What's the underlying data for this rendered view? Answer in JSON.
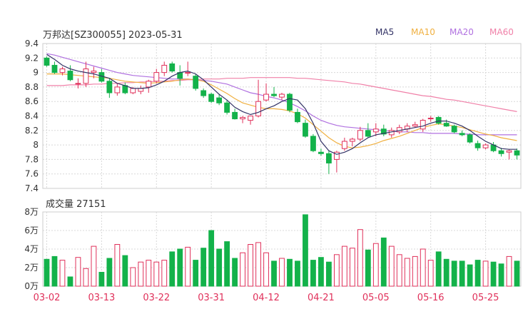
{
  "chart_data": {
    "type": "candlestick",
    "title": "万邦达[SZ300055] 2023-05-31",
    "price_axis": {
      "min": 7.4,
      "max": 9.4,
      "ticks": [
        "9.4",
        "9.2",
        "9",
        "8.8",
        "8.6",
        "8.4",
        "8.2",
        "8",
        "7.8",
        "7.6",
        "7.4"
      ]
    },
    "legend": [
      {
        "label": "MA5",
        "color": "#333366"
      },
      {
        "label": "MA10",
        "color": "#f0b040"
      },
      {
        "label": "MA20",
        "color": "#b070e0"
      },
      {
        "label": "MA60",
        "color": "#f080a8"
      }
    ],
    "dates": [
      "03-02",
      "03-03",
      "03-06",
      "03-07",
      "03-08",
      "03-09",
      "03-10",
      "03-13",
      "03-14",
      "03-15",
      "03-16",
      "03-17",
      "03-20",
      "03-21",
      "03-22",
      "03-23",
      "03-24",
      "03-27",
      "03-28",
      "03-29",
      "03-30",
      "03-31",
      "04-03",
      "04-04",
      "04-06",
      "04-07",
      "04-10",
      "04-11",
      "04-12",
      "04-13",
      "04-14",
      "04-17",
      "04-18",
      "04-19",
      "04-20",
      "04-21",
      "04-24",
      "04-25",
      "04-26",
      "04-27",
      "04-28",
      "05-04",
      "05-05",
      "05-08",
      "05-09",
      "05-10",
      "05-11",
      "05-12",
      "05-15",
      "05-16",
      "05-17",
      "05-18",
      "05-19",
      "05-22",
      "05-23",
      "05-24",
      "05-25",
      "05-26",
      "05-29",
      "05-30",
      "05-31"
    ],
    "x_ticks": [
      "03-02",
      "03-13",
      "03-22",
      "03-31",
      "04-12",
      "04-21",
      "05-05",
      "05-16",
      "05-25"
    ],
    "x_tick_indices": [
      0,
      7,
      14,
      21,
      28,
      35,
      42,
      49,
      56
    ],
    "ohlc": [
      [
        9.2,
        9.22,
        9.08,
        9.1
      ],
      [
        9.1,
        9.15,
        8.98,
        9.0
      ],
      [
        9.0,
        9.08,
        8.96,
        9.05
      ],
      [
        9.02,
        9.1,
        8.88,
        8.9
      ],
      [
        8.85,
        8.92,
        8.78,
        8.85
      ],
      [
        8.85,
        9.15,
        8.8,
        9.05
      ],
      [
        9.0,
        9.08,
        8.92,
        9.02
      ],
      [
        9.0,
        9.05,
        8.86,
        8.88
      ],
      [
        8.88,
        8.92,
        8.65,
        8.72
      ],
      [
        8.72,
        8.85,
        8.68,
        8.8
      ],
      [
        8.82,
        8.86,
        8.7,
        8.72
      ],
      [
        8.72,
        8.8,
        8.7,
        8.78
      ],
      [
        8.74,
        8.82,
        8.7,
        8.78
      ],
      [
        8.8,
        8.9,
        8.72,
        8.88
      ],
      [
        8.88,
        9.05,
        8.85,
        9.0
      ],
      [
        9.0,
        9.15,
        8.95,
        9.1
      ],
      [
        9.12,
        9.15,
        9.0,
        9.02
      ],
      [
        9.0,
        9.1,
        8.82,
        8.92
      ],
      [
        9.0,
        9.15,
        8.95,
        9.0
      ],
      [
        8.95,
        8.98,
        8.75,
        8.78
      ],
      [
        8.75,
        8.78,
        8.65,
        8.68
      ],
      [
        8.7,
        8.72,
        8.58,
        8.6
      ],
      [
        8.65,
        8.7,
        8.55,
        8.58
      ],
      [
        8.58,
        8.62,
        8.42,
        8.45
      ],
      [
        8.45,
        8.5,
        8.35,
        8.36
      ],
      [
        8.36,
        8.4,
        8.3,
        8.38
      ],
      [
        8.34,
        8.4,
        8.28,
        8.4
      ],
      [
        8.4,
        8.9,
        8.38,
        8.6
      ],
      [
        8.62,
        8.85,
        8.6,
        8.7
      ],
      [
        8.7,
        8.8,
        8.66,
        8.68
      ],
      [
        8.66,
        8.72,
        8.62,
        8.7
      ],
      [
        8.7,
        8.72,
        8.45,
        8.48
      ],
      [
        8.45,
        8.5,
        8.3,
        8.32
      ],
      [
        8.3,
        8.35,
        8.1,
        8.12
      ],
      [
        8.12,
        8.15,
        7.9,
        7.92
      ],
      [
        7.9,
        7.95,
        7.85,
        7.88
      ],
      [
        7.88,
        7.92,
        7.6,
        7.75
      ],
      [
        7.8,
        7.92,
        7.62,
        7.9
      ],
      [
        7.95,
        8.1,
        7.92,
        8.05
      ],
      [
        8.05,
        8.1,
        7.98,
        8.08
      ],
      [
        8.08,
        8.25,
        8.05,
        8.2
      ],
      [
        8.2,
        8.3,
        8.1,
        8.12
      ],
      [
        8.18,
        8.3,
        8.12,
        8.22
      ],
      [
        8.22,
        8.28,
        8.12,
        8.15
      ],
      [
        8.14,
        8.24,
        8.1,
        8.2
      ],
      [
        8.18,
        8.28,
        8.15,
        8.24
      ],
      [
        8.22,
        8.3,
        8.18,
        8.26
      ],
      [
        8.26,
        8.32,
        8.24,
        8.28
      ],
      [
        8.22,
        8.36,
        8.18,
        8.34
      ],
      [
        8.36,
        8.4,
        8.32,
        8.37
      ],
      [
        8.38,
        8.4,
        8.28,
        8.3
      ],
      [
        8.3,
        8.35,
        8.25,
        8.26
      ],
      [
        8.26,
        8.28,
        8.16,
        8.18
      ],
      [
        8.16,
        8.2,
        8.12,
        8.14
      ],
      [
        8.14,
        8.16,
        8.02,
        8.04
      ],
      [
        8.02,
        8.06,
        7.92,
        7.96
      ],
      [
        7.96,
        8.02,
        7.94,
        8.0
      ],
      [
        8.0,
        8.04,
        7.9,
        7.92
      ],
      [
        7.92,
        7.96,
        7.84,
        7.88
      ],
      [
        7.9,
        7.94,
        7.8,
        7.92
      ],
      [
        7.92,
        7.95,
        7.8,
        7.86
      ]
    ],
    "ma5": [
      9.25,
      9.18,
      9.1,
      9.05,
      9.02,
      9.0,
      8.98,
      8.95,
      8.92,
      8.85,
      8.82,
      8.78,
      8.78,
      8.79,
      8.83,
      8.88,
      8.95,
      9.0,
      9.02,
      8.98,
      8.9,
      8.8,
      8.7,
      8.62,
      8.52,
      8.46,
      8.42,
      8.45,
      8.5,
      8.54,
      8.6,
      8.64,
      8.62,
      8.5,
      8.3,
      8.05,
      7.92,
      7.87,
      7.9,
      7.95,
      8.03,
      8.1,
      8.14,
      8.16,
      8.18,
      8.2,
      8.22,
      8.24,
      8.26,
      8.3,
      8.33,
      8.33,
      8.3,
      8.26,
      8.2,
      8.12,
      8.05,
      8.0,
      7.95,
      7.94,
      7.94
    ],
    "ma10": [
      8.98,
      8.98,
      8.98,
      8.97,
      8.96,
      8.95,
      8.94,
      8.93,
      8.92,
      8.9,
      8.88,
      8.87,
      8.86,
      8.85,
      8.86,
      8.87,
      8.88,
      8.9,
      8.91,
      8.9,
      8.88,
      8.83,
      8.77,
      8.71,
      8.64,
      8.58,
      8.55,
      8.52,
      8.5,
      8.5,
      8.49,
      8.47,
      8.43,
      8.37,
      8.28,
      8.19,
      8.1,
      8.03,
      7.98,
      7.96,
      7.97,
      7.99,
      8.02,
      8.06,
      8.09,
      8.12,
      8.16,
      8.2,
      8.24,
      8.27,
      8.29,
      8.28,
      8.26,
      8.24,
      8.21,
      8.18,
      8.15,
      8.13,
      8.1,
      8.08,
      8.06
    ],
    "ma20": [
      9.26,
      9.24,
      9.21,
      9.18,
      9.15,
      9.12,
      9.09,
      9.06,
      9.03,
      9.0,
      8.98,
      8.96,
      8.95,
      8.94,
      8.93,
      8.92,
      8.91,
      8.91,
      8.91,
      8.9,
      8.89,
      8.88,
      8.86,
      8.84,
      8.8,
      8.76,
      8.72,
      8.7,
      8.67,
      8.65,
      8.62,
      8.58,
      8.53,
      8.47,
      8.4,
      8.34,
      8.3,
      8.27,
      8.25,
      8.24,
      8.23,
      8.22,
      8.21,
      8.2,
      8.19,
      8.18,
      8.18,
      8.17,
      8.17,
      8.16,
      8.16,
      8.16,
      8.16,
      8.15,
      8.15,
      8.14,
      8.14,
      8.14,
      8.14,
      8.14,
      8.14
    ],
    "ma60": [
      8.82,
      8.82,
      8.82,
      8.83,
      8.83,
      8.83,
      8.84,
      8.84,
      8.85,
      8.85,
      8.86,
      8.86,
      8.87,
      8.87,
      8.88,
      8.88,
      8.89,
      8.89,
      8.9,
      8.9,
      8.91,
      8.91,
      8.91,
      8.92,
      8.92,
      8.92,
      8.93,
      8.93,
      8.93,
      8.93,
      8.93,
      8.93,
      8.92,
      8.92,
      8.91,
      8.9,
      8.89,
      8.88,
      8.87,
      8.85,
      8.84,
      8.82,
      8.8,
      8.78,
      8.76,
      8.74,
      8.72,
      8.7,
      8.68,
      8.67,
      8.65,
      8.63,
      8.62,
      8.6,
      8.58,
      8.56,
      8.54,
      8.52,
      8.5,
      8.48,
      8.46
    ],
    "volume": {
      "title": "成交量 27151",
      "ticks": [
        "8万",
        "6万",
        "4万",
        "2万",
        "0万"
      ],
      "max": 80000,
      "values": [
        29000,
        32000,
        28000,
        10000,
        31000,
        19000,
        43000,
        15000,
        30000,
        45000,
        33000,
        20000,
        26000,
        28000,
        26000,
        28000,
        37000,
        40000,
        42000,
        28000,
        41000,
        60000,
        40000,
        48000,
        30000,
        36000,
        45000,
        47000,
        36000,
        27000,
        30000,
        29000,
        27000,
        77000,
        28000,
        31000,
        26000,
        34000,
        43000,
        41000,
        61000,
        39000,
        46000,
        52000,
        43000,
        34000,
        30000,
        32000,
        40000,
        28000,
        37000,
        29000,
        27000,
        27000,
        23000,
        28000,
        27000,
        26000,
        24000,
        32000,
        27000
      ]
    }
  }
}
